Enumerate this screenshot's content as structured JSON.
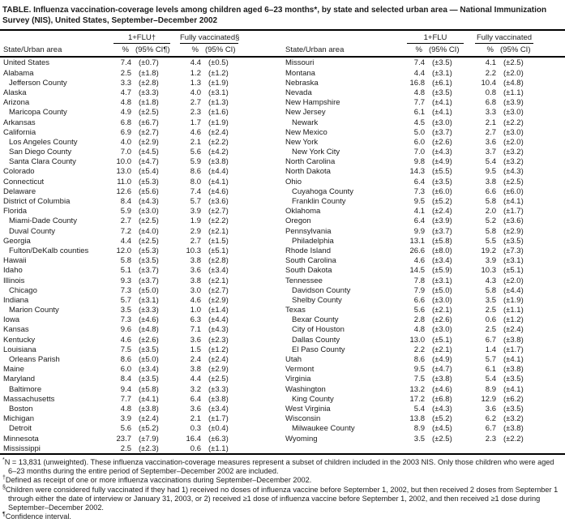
{
  "title": "TABLE. Influenza vaccination-coverage levels among children aged 6–23 months*, by state and selected urban area — National Immunization Survey (NIS), United States, September–December 2002",
  "columns": {
    "state_label": "State/Urban area",
    "left": {
      "group1": "1+FLU†",
      "group2": "Fully vaccinated§",
      "pct1": "%",
      "ci1": "(95% CI¶)",
      "pct2": "%",
      "ci2": "(95% CI)"
    },
    "right": {
      "group1": "1+FLU",
      "group2": "Fully vaccinated",
      "pct1": "%",
      "ci1": "(95% CI)",
      "pct2": "%",
      "ci2": "(95% CI)"
    }
  },
  "left_rows": [
    {
      "name": "United States",
      "indent": false,
      "flu_pct": "7.4",
      "flu_ci": "(±0.7)",
      "fv_pct": "4.4",
      "fv_ci": "(±0.5)"
    },
    {
      "name": "Alabama",
      "indent": false,
      "flu_pct": "2.5",
      "flu_ci": "(±1.8)",
      "fv_pct": "1.2",
      "fv_ci": "(±1.2)"
    },
    {
      "name": "Jefferson County",
      "indent": true,
      "flu_pct": "3.3",
      "flu_ci": "(±2.8)",
      "fv_pct": "1.3",
      "fv_ci": "(±1.9)"
    },
    {
      "name": "Alaska",
      "indent": false,
      "flu_pct": "4.7",
      "flu_ci": "(±3.3)",
      "fv_pct": "4.0",
      "fv_ci": "(±3.1)"
    },
    {
      "name": "Arizona",
      "indent": false,
      "flu_pct": "4.8",
      "flu_ci": "(±1.8)",
      "fv_pct": "2.7",
      "fv_ci": "(±1.3)"
    },
    {
      "name": "Maricopa County",
      "indent": true,
      "flu_pct": "4.9",
      "flu_ci": "(±2.5)",
      "fv_pct": "2.3",
      "fv_ci": "(±1.6)"
    },
    {
      "name": "Arkansas",
      "indent": false,
      "flu_pct": "6.8",
      "flu_ci": "(±6.7)",
      "fv_pct": "1.7",
      "fv_ci": "(±1.9)"
    },
    {
      "name": "California",
      "indent": false,
      "flu_pct": "6.9",
      "flu_ci": "(±2.7)",
      "fv_pct": "4.6",
      "fv_ci": "(±2.4)"
    },
    {
      "name": "Los Angeles County",
      "indent": true,
      "flu_pct": "4.0",
      "flu_ci": "(±2.9)",
      "fv_pct": "2.1",
      "fv_ci": "(±2.2)"
    },
    {
      "name": "San Diego County",
      "indent": true,
      "flu_pct": "7.0",
      "flu_ci": "(±4.5)",
      "fv_pct": "5.6",
      "fv_ci": "(±4.2)"
    },
    {
      "name": "Santa Clara County",
      "indent": true,
      "flu_pct": "10.0",
      "flu_ci": "(±4.7)",
      "fv_pct": "5.9",
      "fv_ci": "(±3.8)"
    },
    {
      "name": "Colorado",
      "indent": false,
      "flu_pct": "13.0",
      "flu_ci": "(±5.4)",
      "fv_pct": "8.6",
      "fv_ci": "(±4.4)"
    },
    {
      "name": "Connecticut",
      "indent": false,
      "flu_pct": "11.0",
      "flu_ci": "(±5.3)",
      "fv_pct": "8.0",
      "fv_ci": "(±4.1)"
    },
    {
      "name": "Delaware",
      "indent": false,
      "flu_pct": "12.6",
      "flu_ci": "(±5.6)",
      "fv_pct": "7.4",
      "fv_ci": "(±4.6)"
    },
    {
      "name": "District of Columbia",
      "indent": false,
      "flu_pct": "8.4",
      "flu_ci": "(±4.3)",
      "fv_pct": "5.7",
      "fv_ci": "(±3.6)"
    },
    {
      "name": "Florida",
      "indent": false,
      "flu_pct": "5.9",
      "flu_ci": "(±3.0)",
      "fv_pct": "3.9",
      "fv_ci": "(±2.7)"
    },
    {
      "name": "Miami-Dade County",
      "indent": true,
      "flu_pct": "2.7",
      "flu_ci": "(±2.5)",
      "fv_pct": "1.9",
      "fv_ci": "(±2.2)"
    },
    {
      "name": "Duval County",
      "indent": true,
      "flu_pct": "7.2",
      "flu_ci": "(±4.0)",
      "fv_pct": "2.9",
      "fv_ci": "(±2.1)"
    },
    {
      "name": "Georgia",
      "indent": false,
      "flu_pct": "4.4",
      "flu_ci": "(±2.5)",
      "fv_pct": "2.7",
      "fv_ci": "(±1.5)"
    },
    {
      "name": "Fulton/DeKalb counties",
      "indent": true,
      "flu_pct": "12.0",
      "flu_ci": "(±5.3)",
      "fv_pct": "10.3",
      "fv_ci": "(±5.1)"
    },
    {
      "name": "Hawaii",
      "indent": false,
      "flu_pct": "5.8",
      "flu_ci": "(±3.5)",
      "fv_pct": "3.8",
      "fv_ci": "(±2.8)"
    },
    {
      "name": "Idaho",
      "indent": false,
      "flu_pct": "5.1",
      "flu_ci": "(±3.7)",
      "fv_pct": "3.6",
      "fv_ci": "(±3.4)"
    },
    {
      "name": "Illinois",
      "indent": false,
      "flu_pct": "9.3",
      "flu_ci": "(±3.7)",
      "fv_pct": "3.8",
      "fv_ci": "(±2.1)"
    },
    {
      "name": "Chicago",
      "indent": true,
      "flu_pct": "7.3",
      "flu_ci": "(±5.0)",
      "fv_pct": "3.0",
      "fv_ci": "(±2.7)"
    },
    {
      "name": "Indiana",
      "indent": false,
      "flu_pct": "5.7",
      "flu_ci": "(±3.1)",
      "fv_pct": "4.6",
      "fv_ci": "(±2.9)"
    },
    {
      "name": "Marion County",
      "indent": true,
      "flu_pct": "3.5",
      "flu_ci": "(±3.3)",
      "fv_pct": "1.0",
      "fv_ci": "(±1.4)"
    },
    {
      "name": "Iowa",
      "indent": false,
      "flu_pct": "7.3",
      "flu_ci": "(±4.6)",
      "fv_pct": "6.3",
      "fv_ci": "(±4.4)"
    },
    {
      "name": "Kansas",
      "indent": false,
      "flu_pct": "9.6",
      "flu_ci": "(±4.8)",
      "fv_pct": "7.1",
      "fv_ci": "(±4.3)"
    },
    {
      "name": "Kentucky",
      "indent": false,
      "flu_pct": "4.6",
      "flu_ci": "(±2.6)",
      "fv_pct": "3.6",
      "fv_ci": "(±2.3)"
    },
    {
      "name": "Louisiana",
      "indent": false,
      "flu_pct": "7.5",
      "flu_ci": "(±3.5)",
      "fv_pct": "1.5",
      "fv_ci": "(±1.2)"
    },
    {
      "name": "Orleans Parish",
      "indent": true,
      "flu_pct": "8.6",
      "flu_ci": "(±5.0)",
      "fv_pct": "2.4",
      "fv_ci": "(±2.4)"
    },
    {
      "name": "Maine",
      "indent": false,
      "flu_pct": "6.0",
      "flu_ci": "(±3.4)",
      "fv_pct": "3.8",
      "fv_ci": "(±2.9)"
    },
    {
      "name": "Maryland",
      "indent": false,
      "flu_pct": "8.4",
      "flu_ci": "(±3.5)",
      "fv_pct": "4.4",
      "fv_ci": "(±2.5)"
    },
    {
      "name": "Baltimore",
      "indent": true,
      "flu_pct": "9.4",
      "flu_ci": "(±5.8)",
      "fv_pct": "3.2",
      "fv_ci": "(±3.3)"
    },
    {
      "name": "Massachusetts",
      "indent": false,
      "flu_pct": "7.7",
      "flu_ci": "(±4.1)",
      "fv_pct": "6.4",
      "fv_ci": "(±3.8)"
    },
    {
      "name": "Boston",
      "indent": true,
      "flu_pct": "4.8",
      "flu_ci": "(±3.8)",
      "fv_pct": "3.6",
      "fv_ci": "(±3.4)"
    },
    {
      "name": "Michigan",
      "indent": false,
      "flu_pct": "3.9",
      "flu_ci": "(±2.4)",
      "fv_pct": "2.1",
      "fv_ci": "(±1.7)"
    },
    {
      "name": "Detroit",
      "indent": true,
      "flu_pct": "5.6",
      "flu_ci": "(±5.2)",
      "fv_pct": "0.3",
      "fv_ci": "(±0.4)"
    },
    {
      "name": "Minnesota",
      "indent": false,
      "flu_pct": "23.7",
      "flu_ci": "(±7.9)",
      "fv_pct": "16.4",
      "fv_ci": "(±6.3)"
    },
    {
      "name": "Mississippi",
      "indent": false,
      "flu_pct": "2.5",
      "flu_ci": "(±2.3)",
      "fv_pct": "0.6",
      "fv_ci": "(±1.1)"
    }
  ],
  "right_rows": [
    {
      "name": "Missouri",
      "indent": false,
      "flu_pct": "7.4",
      "flu_ci": "(±3.5)",
      "fv_pct": "4.1",
      "fv_ci": "(±2.5)"
    },
    {
      "name": "Montana",
      "indent": false,
      "flu_pct": "4.4",
      "flu_ci": "(±3.1)",
      "fv_pct": "2.2",
      "fv_ci": "(±2.0)"
    },
    {
      "name": "Nebraska",
      "indent": false,
      "flu_pct": "16.8",
      "flu_ci": "(±6.1)",
      "fv_pct": "10.4",
      "fv_ci": "(±4.8)"
    },
    {
      "name": "Nevada",
      "indent": false,
      "flu_pct": "4.8",
      "flu_ci": "(±3.5)",
      "fv_pct": "0.8",
      "fv_ci": "(±1.1)"
    },
    {
      "name": "New Hampshire",
      "indent": false,
      "flu_pct": "7.7",
      "flu_ci": "(±4.1)",
      "fv_pct": "6.8",
      "fv_ci": "(±3.9)"
    },
    {
      "name": "New Jersey",
      "indent": false,
      "flu_pct": "6.1",
      "flu_ci": "(±4.1)",
      "fv_pct": "3.3",
      "fv_ci": "(±3.0)"
    },
    {
      "name": "Newark",
      "indent": true,
      "flu_pct": "4.5",
      "flu_ci": "(±3.0)",
      "fv_pct": "2.1",
      "fv_ci": "(±2.2)"
    },
    {
      "name": "New Mexico",
      "indent": false,
      "flu_pct": "5.0",
      "flu_ci": "(±3.7)",
      "fv_pct": "2.7",
      "fv_ci": "(±3.0)"
    },
    {
      "name": "New York",
      "indent": false,
      "flu_pct": "6.0",
      "flu_ci": "(±2.6)",
      "fv_pct": "3.6",
      "fv_ci": "(±2.0)"
    },
    {
      "name": "New York City",
      "indent": true,
      "flu_pct": "7.0",
      "flu_ci": "(±4.3)",
      "fv_pct": "3.7",
      "fv_ci": "(±3.2)"
    },
    {
      "name": "North Carolina",
      "indent": false,
      "flu_pct": "9.8",
      "flu_ci": "(±4.9)",
      "fv_pct": "5.4",
      "fv_ci": "(±3.2)"
    },
    {
      "name": "North Dakota",
      "indent": false,
      "flu_pct": "14.3",
      "flu_ci": "(±5.5)",
      "fv_pct": "9.5",
      "fv_ci": "(±4.3)"
    },
    {
      "name": "Ohio",
      "indent": false,
      "flu_pct": "6.4",
      "flu_ci": "(±3.5)",
      "fv_pct": "3.8",
      "fv_ci": "(±2.5)"
    },
    {
      "name": "Cuyahoga County",
      "indent": true,
      "flu_pct": "7.3",
      "flu_ci": "(±6.0)",
      "fv_pct": "6.6",
      "fv_ci": "(±6.0)"
    },
    {
      "name": "Franklin County",
      "indent": true,
      "flu_pct": "9.5",
      "flu_ci": "(±5.2)",
      "fv_pct": "5.8",
      "fv_ci": "(±4.1)"
    },
    {
      "name": "Oklahoma",
      "indent": false,
      "flu_pct": "4.1",
      "flu_ci": "(±2.4)",
      "fv_pct": "2.0",
      "fv_ci": "(±1.7)"
    },
    {
      "name": "Oregon",
      "indent": false,
      "flu_pct": "6.4",
      "flu_ci": "(±3.9)",
      "fv_pct": "5.2",
      "fv_ci": "(±3.6)"
    },
    {
      "name": "Pennsylvania",
      "indent": false,
      "flu_pct": "9.9",
      "flu_ci": "(±3.7)",
      "fv_pct": "5.8",
      "fv_ci": "(±2.9)"
    },
    {
      "name": "Philadelphia",
      "indent": true,
      "flu_pct": "13.1",
      "flu_ci": "(±5.8)",
      "fv_pct": "5.5",
      "fv_ci": "(±3.5)"
    },
    {
      "name": "Rhode Island",
      "indent": false,
      "flu_pct": "26.6",
      "flu_ci": "(±8.0)",
      "fv_pct": "19.2",
      "fv_ci": "(±7.3)"
    },
    {
      "name": "South Carolina",
      "indent": false,
      "flu_pct": "4.6",
      "flu_ci": "(±3.4)",
      "fv_pct": "3.9",
      "fv_ci": "(±3.1)"
    },
    {
      "name": "South Dakota",
      "indent": false,
      "flu_pct": "14.5",
      "flu_ci": "(±5.9)",
      "fv_pct": "10.3",
      "fv_ci": "(±5.1)"
    },
    {
      "name": "Tennessee",
      "indent": false,
      "flu_pct": "7.8",
      "flu_ci": "(±3.1)",
      "fv_pct": "4.3",
      "fv_ci": "(±2.0)"
    },
    {
      "name": "Davidson County",
      "indent": true,
      "flu_pct": "7.9",
      "flu_ci": "(±5.0)",
      "fv_pct": "5.8",
      "fv_ci": "(±4.4)"
    },
    {
      "name": "Shelby County",
      "indent": true,
      "flu_pct": "6.6",
      "flu_ci": "(±3.0)",
      "fv_pct": "3.5",
      "fv_ci": "(±1.9)"
    },
    {
      "name": "Texas",
      "indent": false,
      "flu_pct": "5.6",
      "flu_ci": "(±2.1)",
      "fv_pct": "2.5",
      "fv_ci": "(±1.1)"
    },
    {
      "name": "Bexar County",
      "indent": true,
      "flu_pct": "2.8",
      "flu_ci": "(±2.6)",
      "fv_pct": "0.6",
      "fv_ci": "(±1.2)"
    },
    {
      "name": "City of Houston",
      "indent": true,
      "flu_pct": "4.8",
      "flu_ci": "(±3.0)",
      "fv_pct": "2.5",
      "fv_ci": "(±2.4)"
    },
    {
      "name": "Dallas County",
      "indent": true,
      "flu_pct": "13.0",
      "flu_ci": "(±5.1)",
      "fv_pct": "6.7",
      "fv_ci": "(±3.8)"
    },
    {
      "name": "El Paso County",
      "indent": true,
      "flu_pct": "2.2",
      "flu_ci": "(±2.1)",
      "fv_pct": "1.4",
      "fv_ci": "(±1.7)"
    },
    {
      "name": "Utah",
      "indent": false,
      "flu_pct": "8.6",
      "flu_ci": "(±4.9)",
      "fv_pct": "5.7",
      "fv_ci": "(±4.1)"
    },
    {
      "name": "Vermont",
      "indent": false,
      "flu_pct": "9.5",
      "flu_ci": "(±4.7)",
      "fv_pct": "6.1",
      "fv_ci": "(±3.8)"
    },
    {
      "name": "Virginia",
      "indent": false,
      "flu_pct": "7.5",
      "flu_ci": "(±3.8)",
      "fv_pct": "5.4",
      "fv_ci": "(±3.5)"
    },
    {
      "name": "Washington",
      "indent": false,
      "flu_pct": "13.2",
      "flu_ci": "(±4.6)",
      "fv_pct": "8.9",
      "fv_ci": "(±4.1)"
    },
    {
      "name": "King County",
      "indent": true,
      "flu_pct": "17.2",
      "flu_ci": "(±6.8)",
      "fv_pct": "12.9",
      "fv_ci": "(±6.2)"
    },
    {
      "name": "West Virginia",
      "indent": false,
      "flu_pct": "5.4",
      "flu_ci": "(±4.3)",
      "fv_pct": "3.6",
      "fv_ci": "(±3.5)"
    },
    {
      "name": "Wisconsin",
      "indent": false,
      "flu_pct": "13.8",
      "flu_ci": "(±5.2)",
      "fv_pct": "6.2",
      "fv_ci": "(±3.2)"
    },
    {
      "name": "Milwaukee County",
      "indent": true,
      "flu_pct": "8.9",
      "flu_ci": "(±4.5)",
      "fv_pct": "6.7",
      "fv_ci": "(±3.8)"
    },
    {
      "name": "Wyoming",
      "indent": false,
      "flu_pct": "3.5",
      "flu_ci": "(±2.5)",
      "fv_pct": "2.3",
      "fv_ci": "(±2.2)"
    }
  ],
  "footnotes": [
    {
      "symbol": "*",
      "text": "N = 13,831 (unweighted). These influenza vaccination-coverage measures represent a subset of children included in the 2003 NIS. Only those children who were aged 6–23 months during the entire period of September–December 2002 are included."
    },
    {
      "symbol": "†",
      "text": "Defined as receipt of one or more influenza vaccinations during September–December 2002."
    },
    {
      "symbol": "§",
      "text": "Children were considered fully vaccinated if they had 1) received no doses of influenza vaccine before September 1, 2002, but then received 2 doses from September 1 through either the date of interview or January 31, 2003, or 2) received ≥1 dose of influenza vaccine before September 1, 2002, and then received ≥1 dose during September–December 2002."
    },
    {
      "symbol": "¶",
      "text": "Confidence interval."
    }
  ]
}
